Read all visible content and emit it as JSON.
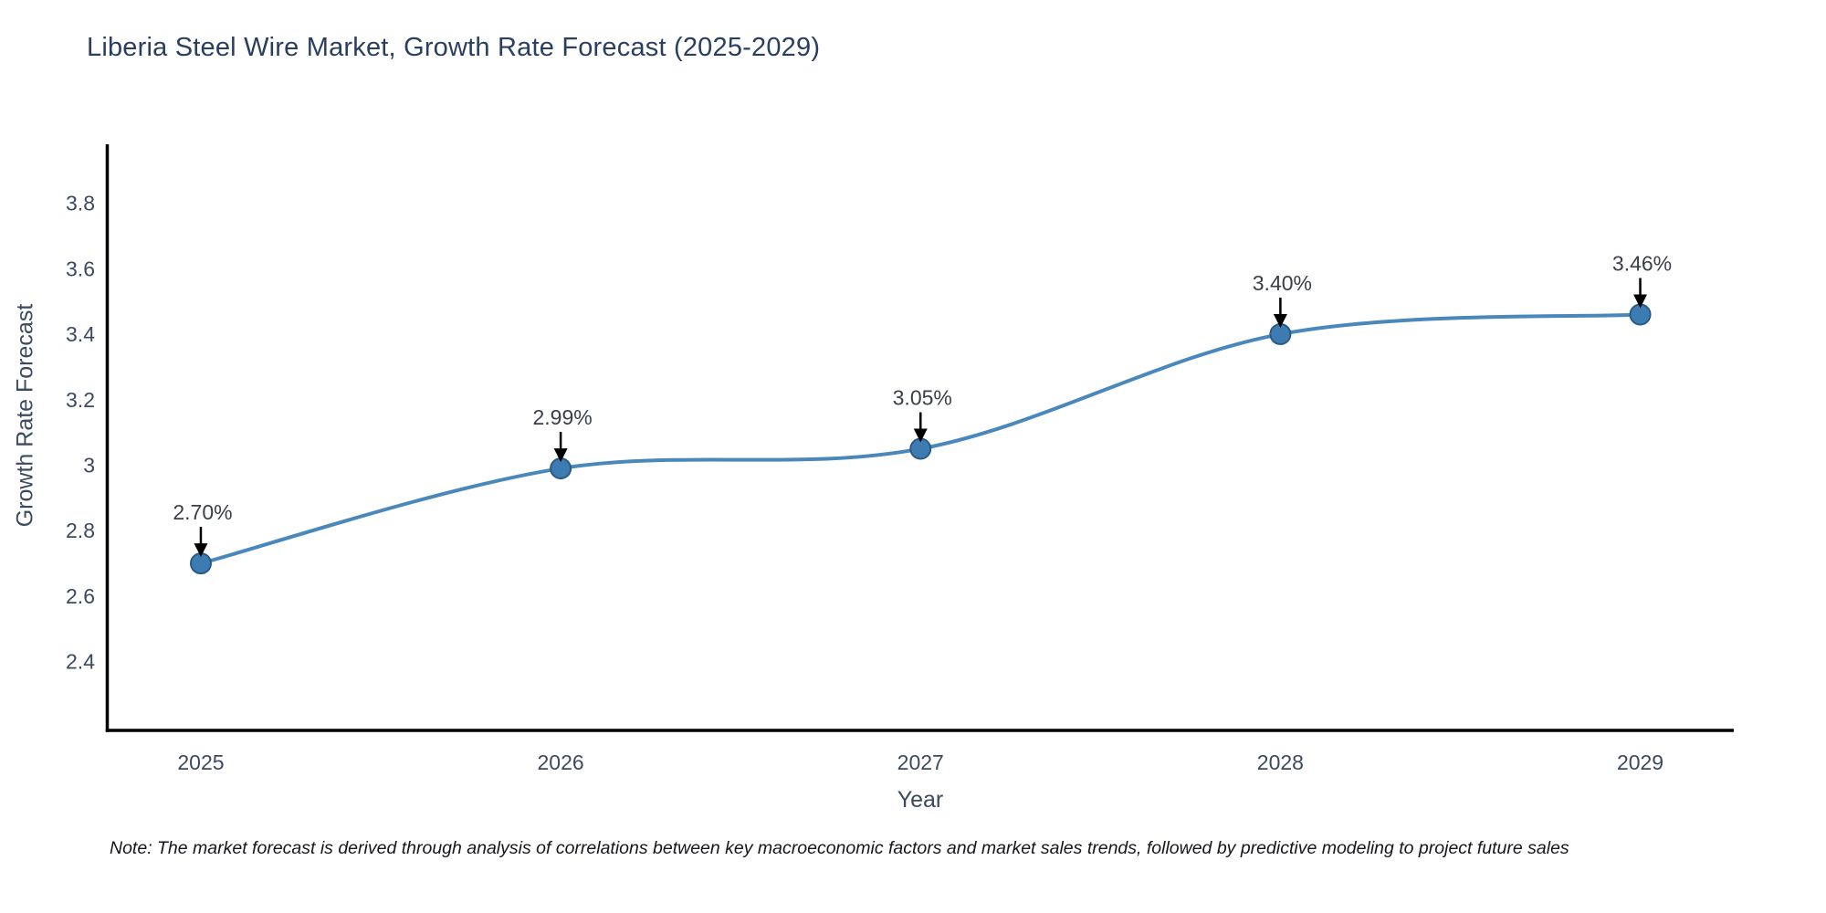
{
  "chart": {
    "title": "Liberia Steel Wire Market, Growth Rate Forecast (2025-2029)",
    "xlabel": "Year",
    "ylabel": "Growth Rate Forecast",
    "note": "Note: The market forecast is derived through analysis of correlations between key macroeconomic factors and market sales trends, followed by predictive modeling to project future sales"
  },
  "chart_data": {
    "type": "line",
    "line_shape": "spline",
    "title": "Liberia Steel Wire Market, Growth Rate Forecast (2025-2029)",
    "xlabel": "Year",
    "ylabel": "Growth Rate Forecast",
    "x": [
      2025,
      2026,
      2027,
      2028,
      2029
    ],
    "x_tick_labels": [
      "2025",
      "2026",
      "2027",
      "2028",
      "2029"
    ],
    "series": [
      {
        "name": "Growth Rate Forecast",
        "values": [
          2.7,
          2.99,
          3.05,
          3.4,
          3.46
        ]
      }
    ],
    "point_labels": [
      "2.70%",
      "2.99%",
      "3.05%",
      "3.40%",
      "3.46%"
    ],
    "y_ticks": [
      2.4,
      2.6,
      2.8,
      3,
      3.2,
      3.4,
      3.6,
      3.8
    ],
    "y_tick_labels": [
      "2.4",
      "2.6",
      "2.8",
      "3",
      "3.2",
      "3.4",
      "3.6",
      "3.8"
    ],
    "ylim": [
      2.19,
      3.98
    ],
    "xlim": [
      2024.74,
      2029.26
    ],
    "grid": false,
    "legend": "none",
    "markers": true,
    "annotations_have_arrows": true,
    "colors": {
      "line": "#4a88bb",
      "marker_fill": "#3d7cb2",
      "marker_edge": "#2b5a82",
      "axis_spine": "#000000",
      "title_text": "#2a3f5f",
      "tick_text": "#3b4a5f",
      "axis_label_text": "#3b4a5f",
      "annotation_text": "#3a3f47",
      "annotation_arrow": "#000000",
      "note_text": "#16161d",
      "background": "#ffffff"
    }
  }
}
